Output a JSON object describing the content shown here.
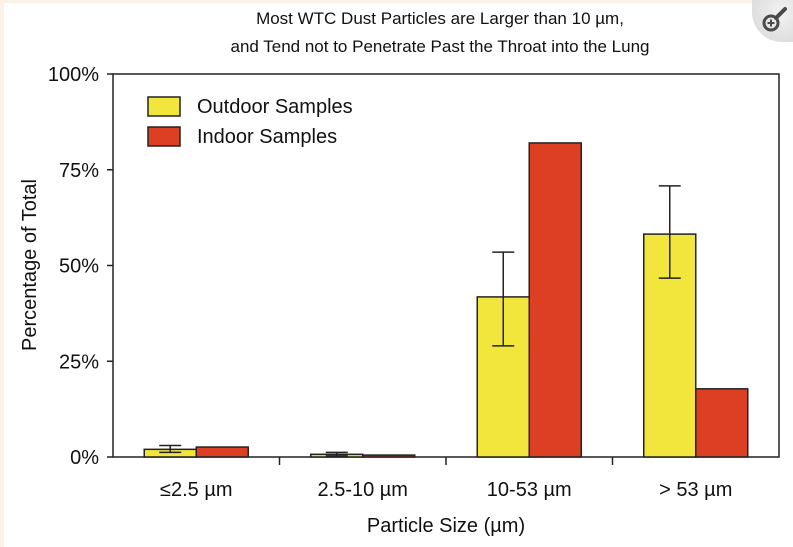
{
  "zoom_icon": "zoom-in-icon",
  "chart_data": {
    "type": "bar",
    "title": [
      "Most WTC Dust Particles are Larger than 10 µm,",
      "and Tend not to Penetrate Past the Throat into the Lung"
    ],
    "xlabel": "Particle Size (µm)",
    "ylabel": "Percentage of Total",
    "ylim": [
      0,
      100
    ],
    "yticks": [
      0,
      25,
      50,
      75,
      100
    ],
    "ytick_labels": [
      "0%",
      "25%",
      "50%",
      "75%",
      "100%"
    ],
    "categories": [
      "≤2.5 µm",
      "2.5-10 µm",
      "10-53 µm",
      "> 53 µm"
    ],
    "series": [
      {
        "name": "Outdoor Samples",
        "color": "#f2e63c",
        "values": [
          2.0,
          0.7,
          41.8,
          58.2
        ],
        "error_low": [
          1.2,
          0.3,
          29.0,
          46.7
        ],
        "error_high": [
          3.0,
          1.2,
          53.5,
          70.8
        ]
      },
      {
        "name": "Indoor Samples",
        "color": "#dc3f22",
        "values": [
          2.6,
          0.5,
          82.0,
          17.8
        ]
      }
    ],
    "legend": "top-left",
    "grid": false
  }
}
